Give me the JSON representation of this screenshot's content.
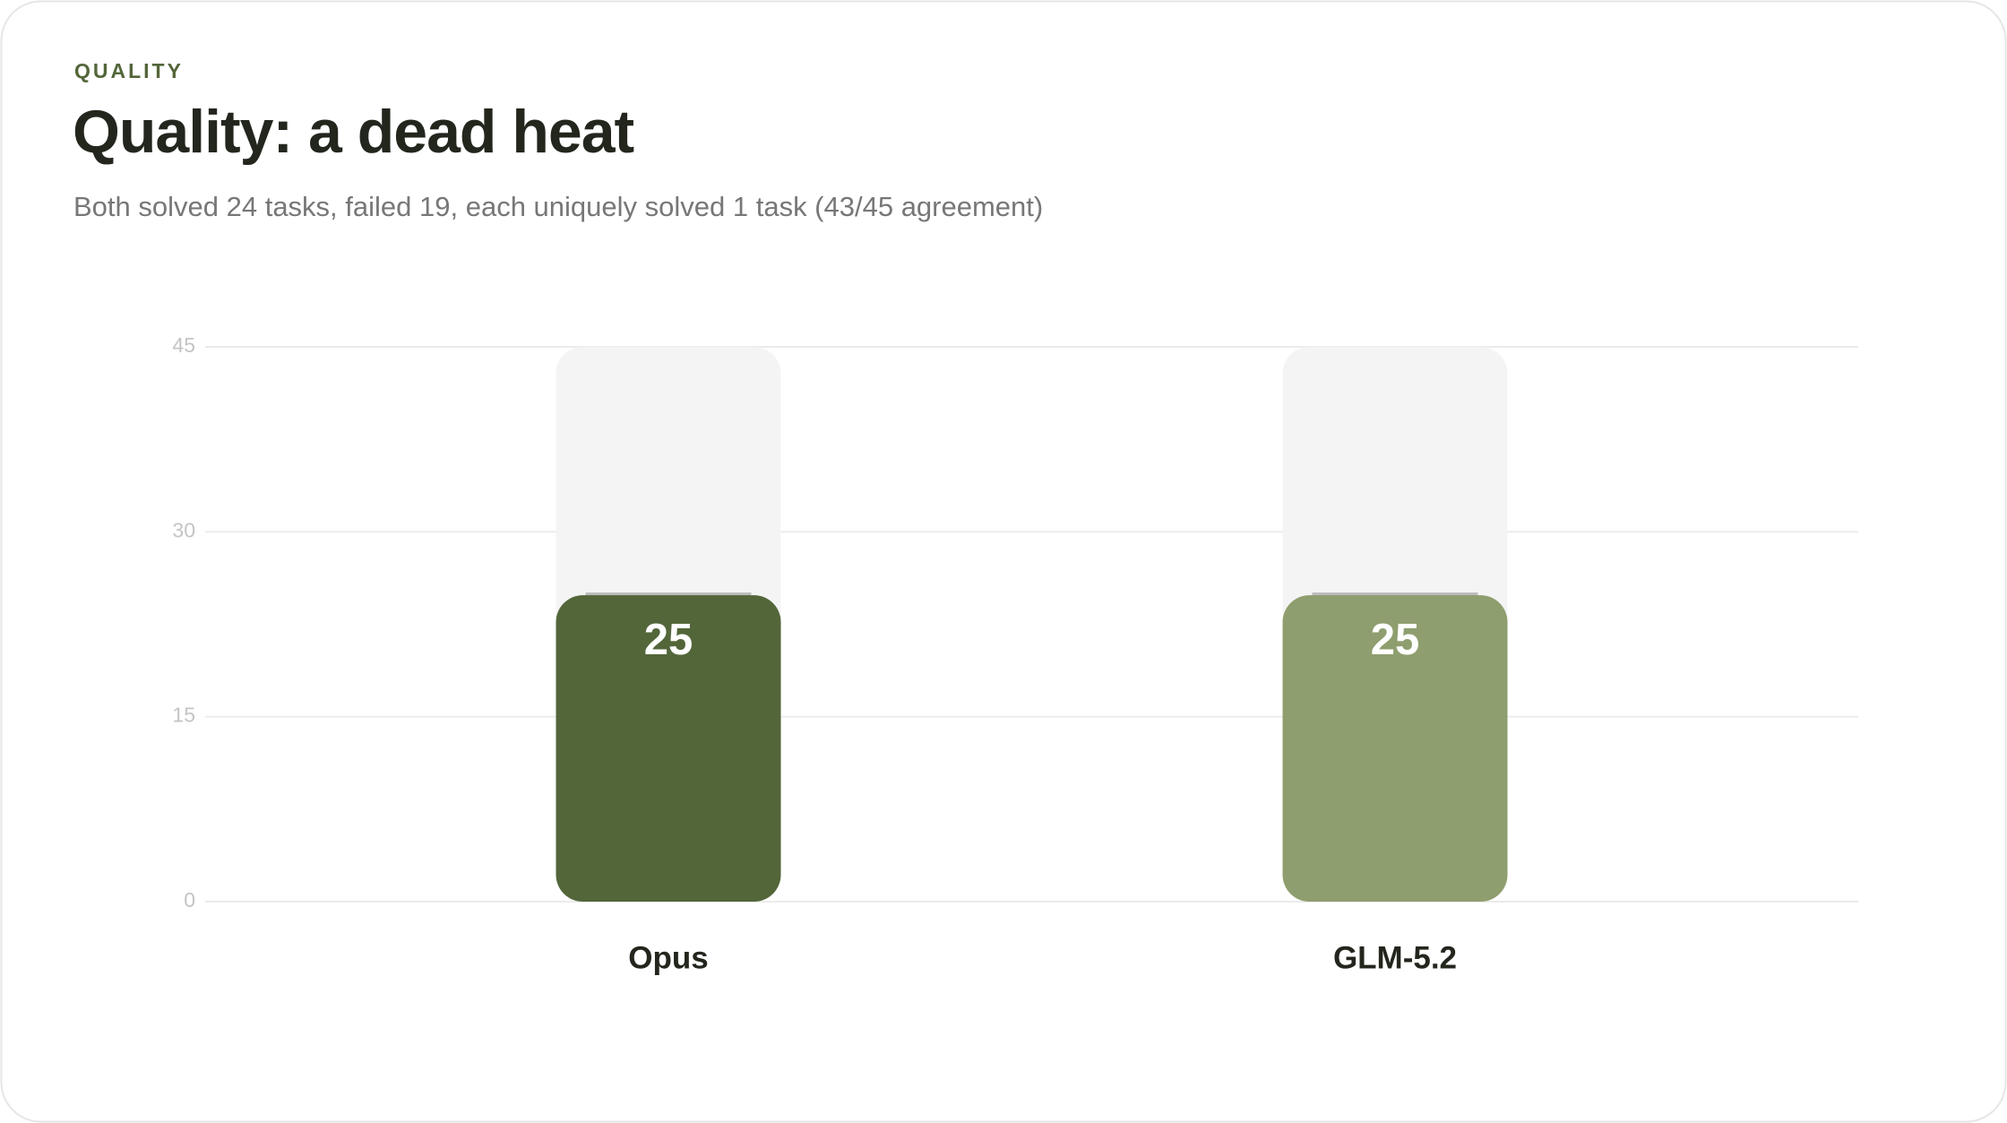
{
  "chart_data": {
    "type": "bar",
    "kicker": "QUALITY",
    "title": "Quality: a dead heat",
    "subtitle": "Both solved 24 tasks, failed 19, each uniquely solved 1 task (43/45 agreement)",
    "categories": [
      "Opus",
      "GLM-5.2"
    ],
    "values": [
      25,
      25
    ],
    "colors": [
      "#53663a",
      "#8f9e6e"
    ],
    "ylim": [
      0,
      45
    ],
    "yticks": [
      0,
      15,
      30,
      45
    ],
    "grid": true
  }
}
